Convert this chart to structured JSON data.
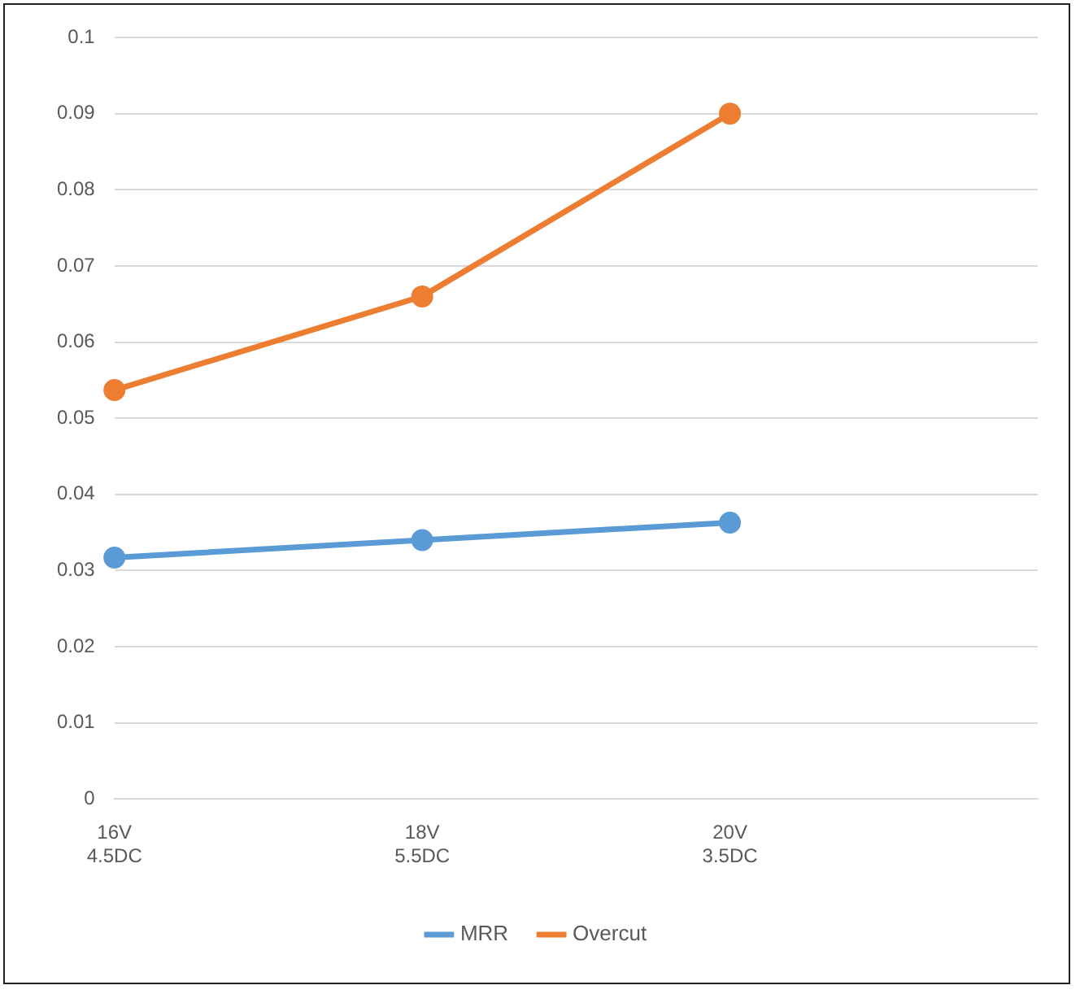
{
  "chart_data": {
    "type": "line",
    "categories": [
      "16V\n4.5DC",
      "18V\n5.5DC",
      "20V\n3.5DC",
      null
    ],
    "series": [
      {
        "name": "MRR",
        "color": "#5b9bd5",
        "values": [
          0.0317,
          0.034,
          0.0363,
          null
        ]
      },
      {
        "name": "Overcut",
        "color": "#ed7d31",
        "values": [
          0.0537,
          0.066,
          0.09,
          null
        ]
      }
    ],
    "ylim": [
      0,
      0.1
    ],
    "yticks": [
      0,
      0.01,
      0.02,
      0.03,
      0.04,
      0.05,
      0.06,
      0.07,
      0.08,
      0.09,
      0.1
    ],
    "grid": "y",
    "legend": "bottom",
    "marker": "circle",
    "line_style": "solid"
  }
}
